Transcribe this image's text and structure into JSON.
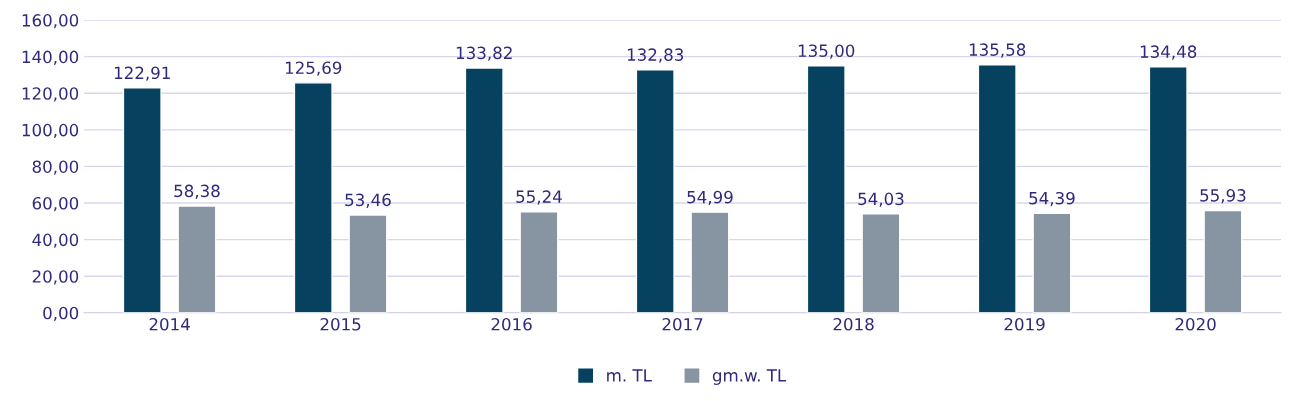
{
  "chart_data": {
    "type": "bar",
    "categories": [
      "2014",
      "2015",
      "2016",
      "2017",
      "2018",
      "2019",
      "2020"
    ],
    "series": [
      {
        "name": "m. TL",
        "color": "#06425f",
        "values": [
          122.91,
          125.69,
          133.82,
          132.83,
          135.0,
          135.58,
          134.48
        ],
        "value_labels": [
          "122,91",
          "125,69",
          "133,82",
          "132,83",
          "135,00",
          "135,58",
          "134,48"
        ]
      },
      {
        "name": "gm.w. TL",
        "color": "#8794a2",
        "values": [
          58.38,
          53.46,
          55.24,
          54.99,
          54.03,
          54.39,
          55.93
        ],
        "value_labels": [
          "58,38",
          "53,46",
          "55,24",
          "54,99",
          "54,03",
          "54,39",
          "55,93"
        ]
      }
    ],
    "ylim": [
      0,
      160
    ],
    "yticks": [
      {
        "value": 0,
        "label": "0,00"
      },
      {
        "value": 20,
        "label": "20,00"
      },
      {
        "value": 40,
        "label": "40,00"
      },
      {
        "value": 60,
        "label": "60,00"
      },
      {
        "value": 80,
        "label": "80,00"
      },
      {
        "value": 100,
        "label": "100,00"
      },
      {
        "value": 120,
        "label": "120,00"
      },
      {
        "value": 140,
        "label": "140,00"
      },
      {
        "value": 160,
        "label": "160,00"
      }
    ],
    "grid": "y",
    "legend": "bottom"
  }
}
